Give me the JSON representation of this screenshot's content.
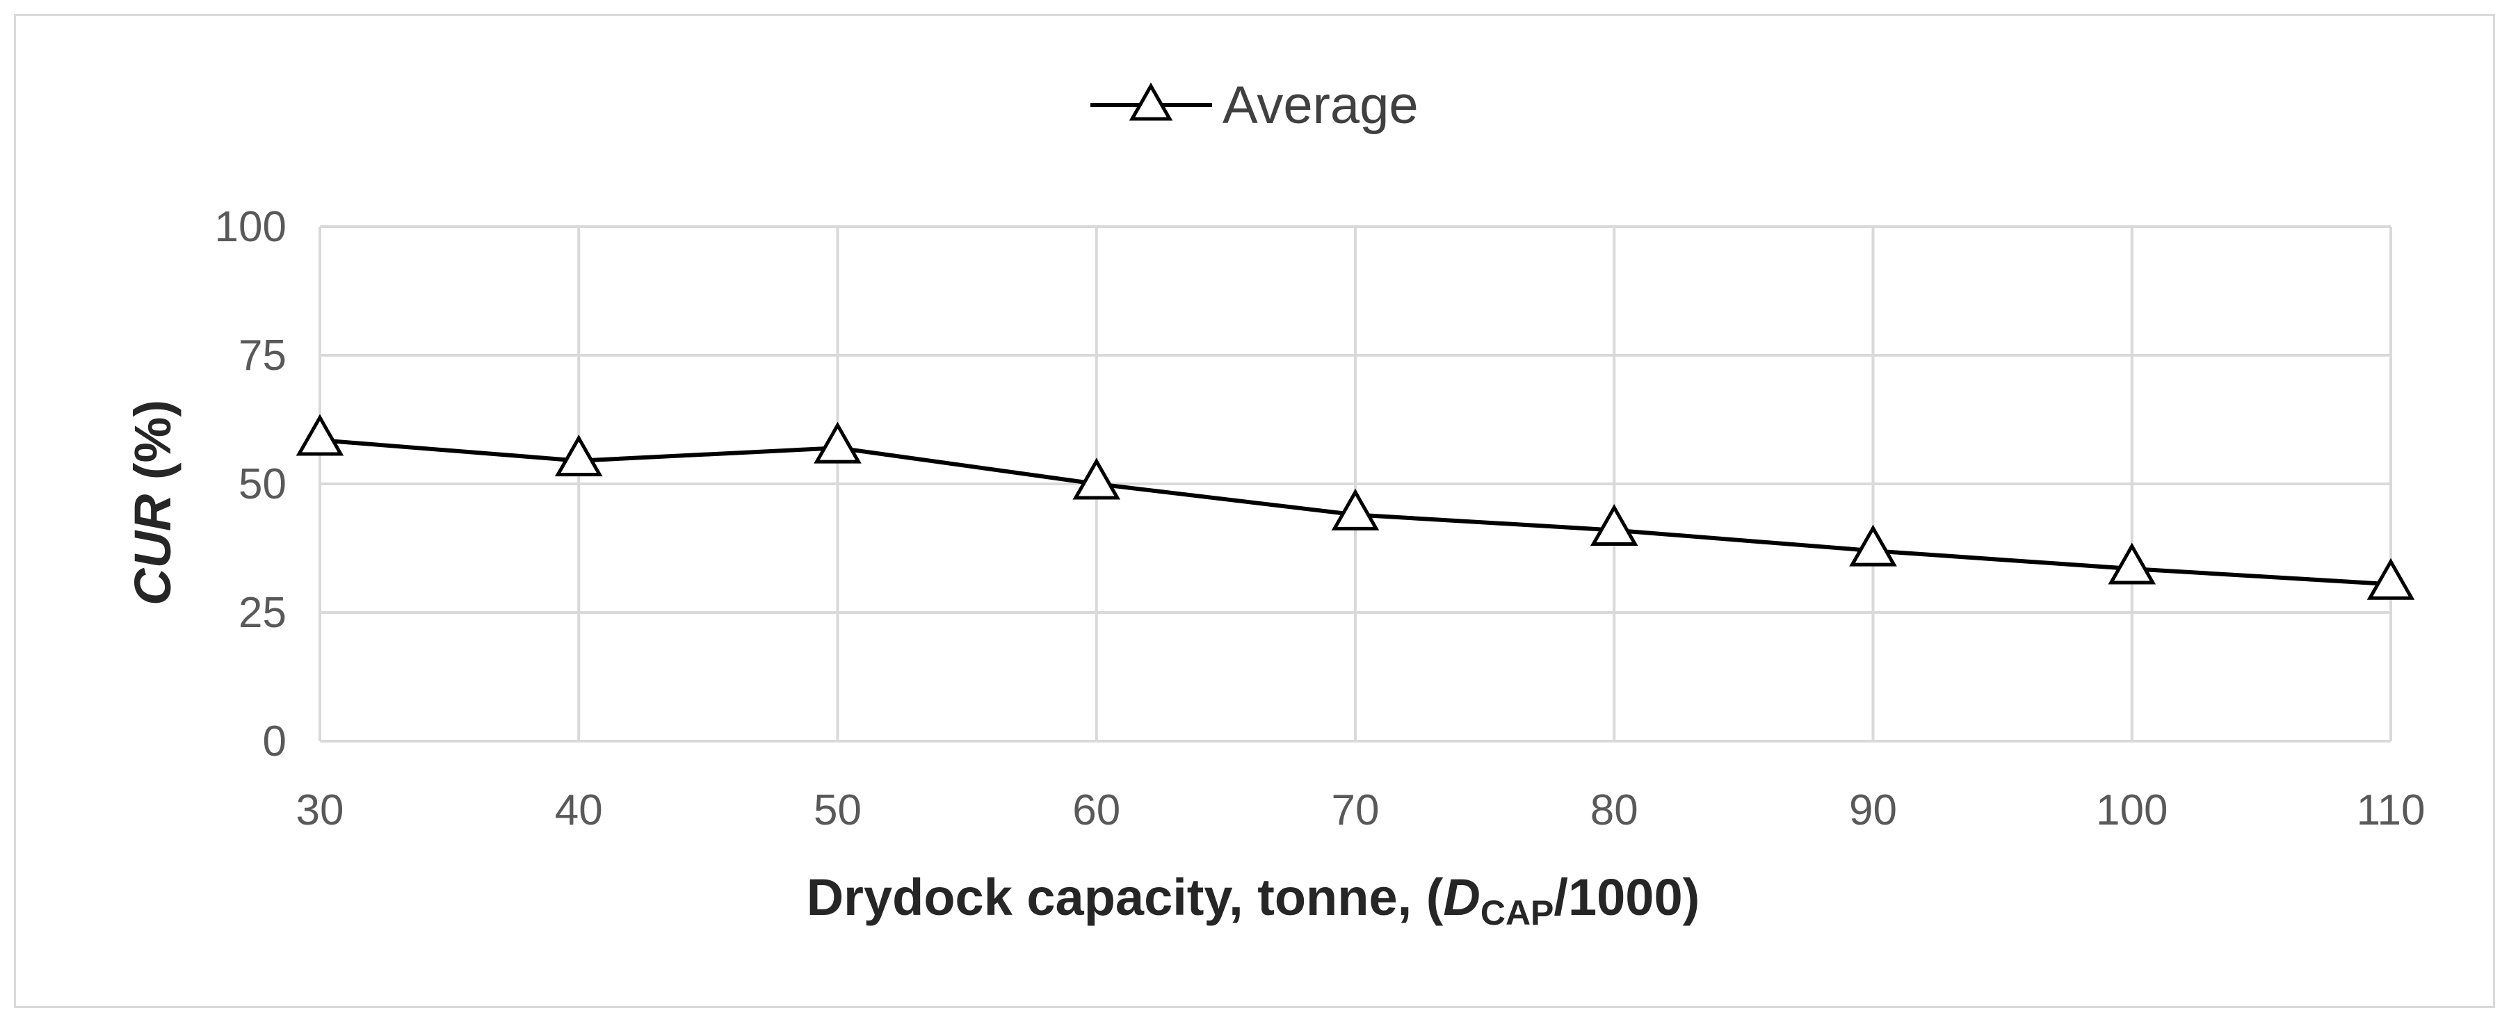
{
  "chart_data": {
    "type": "line",
    "title": "",
    "x": [
      30,
      40,
      50,
      60,
      70,
      80,
      90,
      100,
      110
    ],
    "x_tick_labels": [
      "30",
      "40",
      "50",
      "60",
      "70",
      "80",
      "90",
      "100",
      "110"
    ],
    "series": [
      {
        "name": "Average",
        "marker": "triangle",
        "values": [
          58.5,
          54.5,
          57,
          50,
          44,
          41,
          37,
          33.5,
          30.5
        ]
      }
    ],
    "y_ticks": [
      0,
      25,
      50,
      75,
      100
    ],
    "y_tick_labels": [
      "0",
      "25",
      "50",
      "75",
      "100"
    ],
    "xlim": [
      30,
      110
    ],
    "ylim": [
      0,
      100
    ],
    "xlabel": {
      "prefix": "Drydock capacity, tonne, (",
      "variable": "D",
      "subscript": "CAP",
      "suffix": "/1000)"
    },
    "ylabel": {
      "italic": "CUR",
      "rest": " (%)"
    },
    "legend": {
      "label": "Average",
      "placement": "top-center"
    },
    "grid": true,
    "colors": {
      "line": "#000000",
      "grid": "#d9d9d9",
      "tick_text": "#595959"
    }
  }
}
